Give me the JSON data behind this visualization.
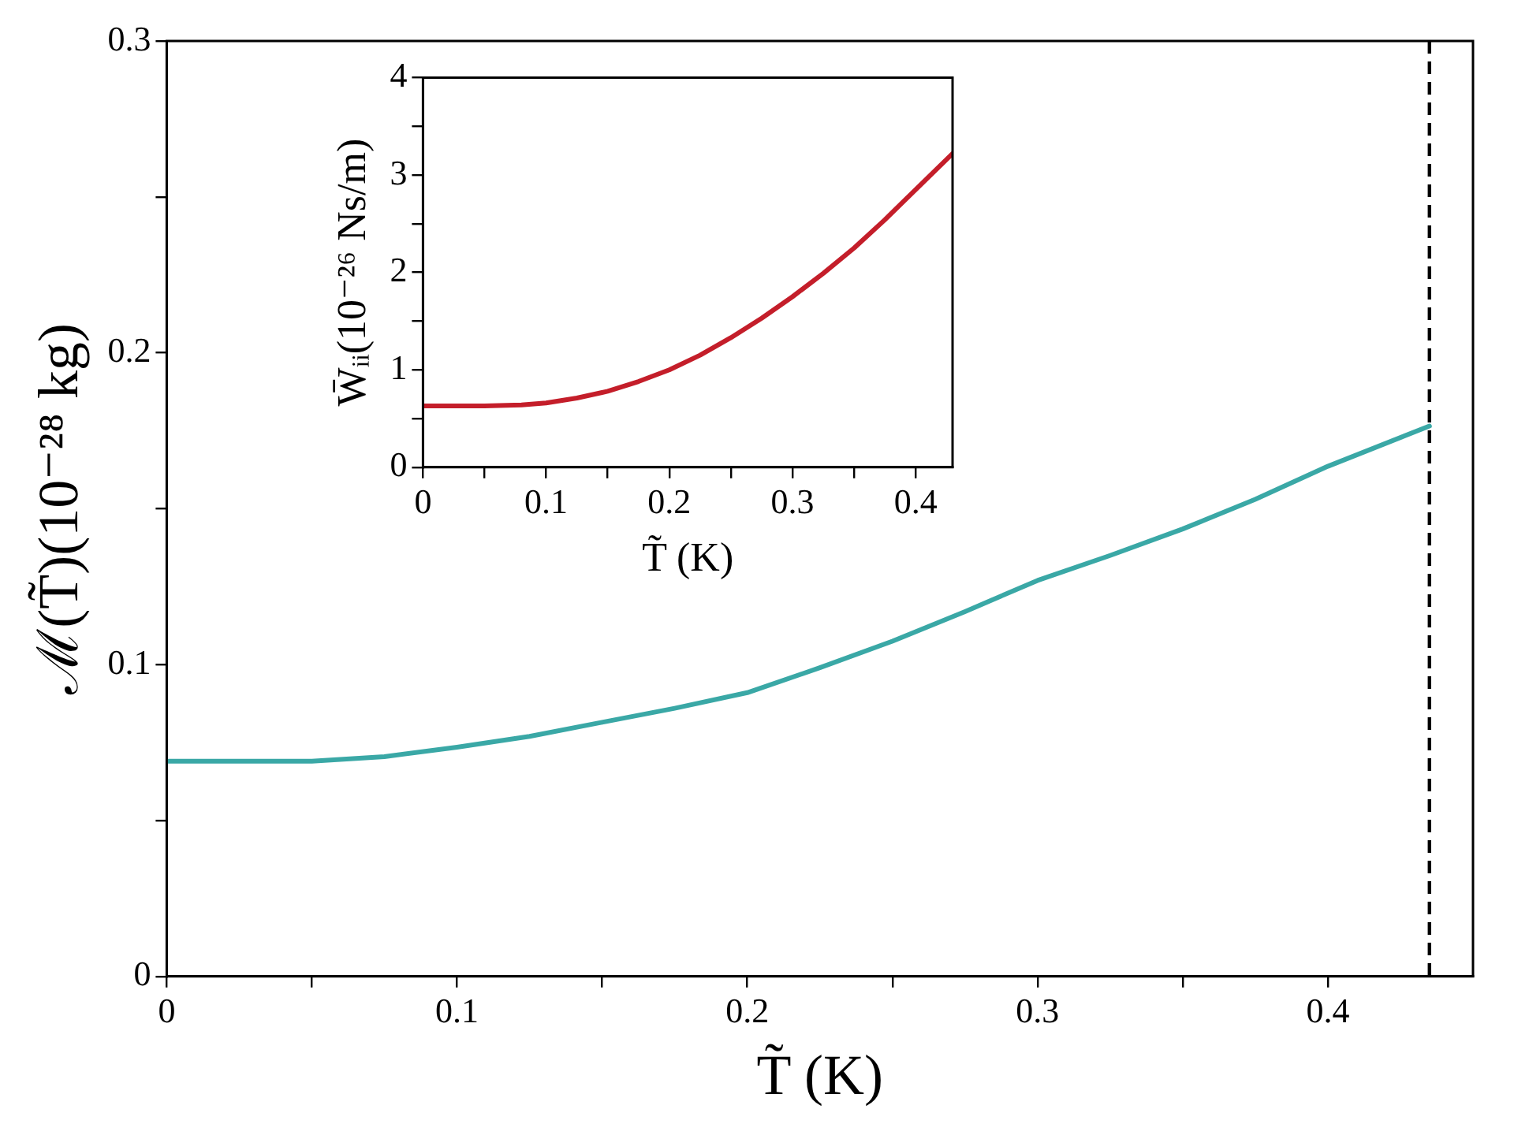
{
  "chart_data": [
    {
      "type": "line",
      "xlabel": "T̃ (K)",
      "ylabel": "ℳ(T̃)(10⁻²⁸ kg)",
      "x": [
        0,
        0.025,
        0.05,
        0.075,
        0.1,
        0.125,
        0.15,
        0.175,
        0.2,
        0.225,
        0.25,
        0.275,
        0.3,
        0.325,
        0.35,
        0.375,
        0.4,
        0.435
      ],
      "series": [
        {
          "color": "#3aa8a6",
          "values": [
            0.069,
            0.069,
            0.069,
            0.0705,
            0.0735,
            0.077,
            0.0815,
            0.086,
            0.091,
            0.099,
            0.1075,
            0.117,
            0.127,
            0.135,
            0.1435,
            0.153,
            0.1636,
            0.1765
          ]
        }
      ],
      "xlim": [
        0,
        0.45
      ],
      "ylim": [
        0,
        0.3
      ],
      "xticks": [
        0,
        {
          "value": 0.05,
          "label": null
        },
        0.1,
        {
          "value": 0.15,
          "label": null
        },
        0.2,
        {
          "value": 0.25,
          "label": null
        },
        0.3,
        {
          "value": 0.35,
          "label": null
        },
        0.4
      ],
      "yticks": [
        0,
        {
          "value": 0.05,
          "label": null
        },
        0.1,
        {
          "value": 0.15,
          "label": null
        },
        0.2,
        {
          "value": 0.25,
          "label": null
        },
        0.3
      ],
      "ref_lines": [
        {
          "axis": "x",
          "value": 0.435,
          "color": "#000000",
          "line_style": "dashed"
        }
      ],
      "grid": false,
      "legend": false,
      "marker": "none",
      "line_style": "solid"
    },
    {
      "type": "line",
      "xlabel": "T̃ (K)",
      "ylabel": "W̄ᵢᵢ(10⁻²⁶ Ns/m)",
      "x": [
        0,
        0.05,
        0.08,
        0.1,
        0.125,
        0.15,
        0.175,
        0.2,
        0.225,
        0.25,
        0.275,
        0.3,
        0.325,
        0.35,
        0.375,
        0.4,
        0.43
      ],
      "series": [
        {
          "color": "#c41e2a",
          "values": [
            0.63,
            0.63,
            0.64,
            0.66,
            0.71,
            0.78,
            0.88,
            1.0,
            1.15,
            1.33,
            1.53,
            1.75,
            1.99,
            2.25,
            2.54,
            2.85,
            3.22
          ]
        }
      ],
      "xlim": [
        0,
        0.43
      ],
      "ylim": [
        0,
        4
      ],
      "xticks": [
        0,
        {
          "value": 0.05,
          "label": null
        },
        0.1,
        {
          "value": 0.15,
          "label": null
        },
        0.2,
        {
          "value": 0.25,
          "label": null
        },
        0.3,
        {
          "value": 0.35,
          "label": null
        },
        0.4
      ],
      "yticks": [
        0,
        {
          "value": 0.5,
          "label": null
        },
        1,
        {
          "value": 1.5,
          "label": null
        },
        2,
        {
          "value": 2.5,
          "label": null
        },
        3,
        {
          "value": 3.5,
          "label": null
        },
        4
      ],
      "grid": false,
      "legend": false,
      "marker": "none",
      "line_style": "solid"
    }
  ]
}
